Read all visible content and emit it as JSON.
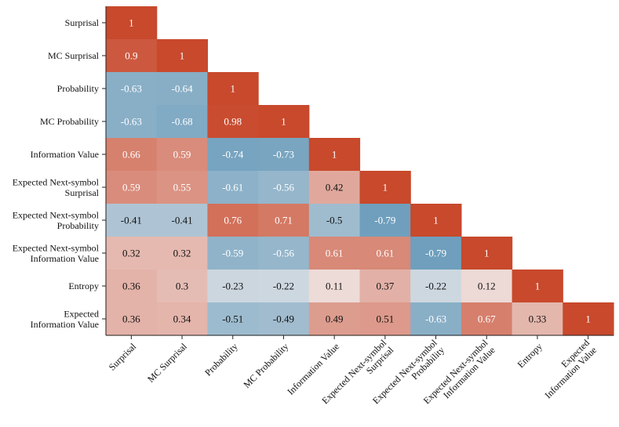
{
  "chart_data": {
    "type": "heatmap",
    "title": "",
    "xlabel": "",
    "ylabel": "",
    "labels": [
      "Surprisal",
      "MC Surprisal",
      "Probability",
      "MC Probability",
      "Information Value",
      "Expected Next-symbol Surprisal",
      "Expected Next-symbol Probability",
      "Expected Next-symbol Information Value",
      "Entropy",
      "Expected Information Value"
    ],
    "row_labels_wrapped": [
      [
        "Surprisal"
      ],
      [
        "MC Surprisal"
      ],
      [
        "Probability"
      ],
      [
        "MC Probability"
      ],
      [
        "Information Value"
      ],
      [
        "Expected Next-symbol",
        "Surprisal"
      ],
      [
        "Expected Next-symbol",
        "Probability"
      ],
      [
        "Expected Next-symbol",
        "Information Value"
      ],
      [
        "Entropy"
      ],
      [
        "Expected",
        "Information Value"
      ]
    ],
    "values": [
      [
        1
      ],
      [
        0.9,
        1
      ],
      [
        -0.63,
        -0.64,
        1
      ],
      [
        -0.63,
        -0.68,
        0.98,
        1
      ],
      [
        0.66,
        0.59,
        -0.74,
        -0.73,
        1
      ],
      [
        0.59,
        0.55,
        -0.61,
        -0.56,
        0.42,
        1
      ],
      [
        -0.41,
        -0.41,
        0.76,
        0.71,
        -0.5,
        -0.79,
        1
      ],
      [
        0.32,
        0.32,
        -0.59,
        -0.56,
        0.61,
        0.61,
        -0.79,
        1
      ],
      [
        0.36,
        0.3,
        -0.23,
        -0.22,
        0.11,
        0.37,
        -0.22,
        0.12,
        1
      ],
      [
        0.36,
        0.34,
        -0.51,
        -0.49,
        0.49,
        0.51,
        -0.63,
        0.67,
        0.33,
        1
      ]
    ],
    "value_range": [
      -1,
      1
    ],
    "triangle": "lower",
    "colorbar": false,
    "grid": false,
    "colors": {
      "negative": "#4c8ab0",
      "neutral": "#f2eded",
      "positive": "#c8492c"
    }
  }
}
